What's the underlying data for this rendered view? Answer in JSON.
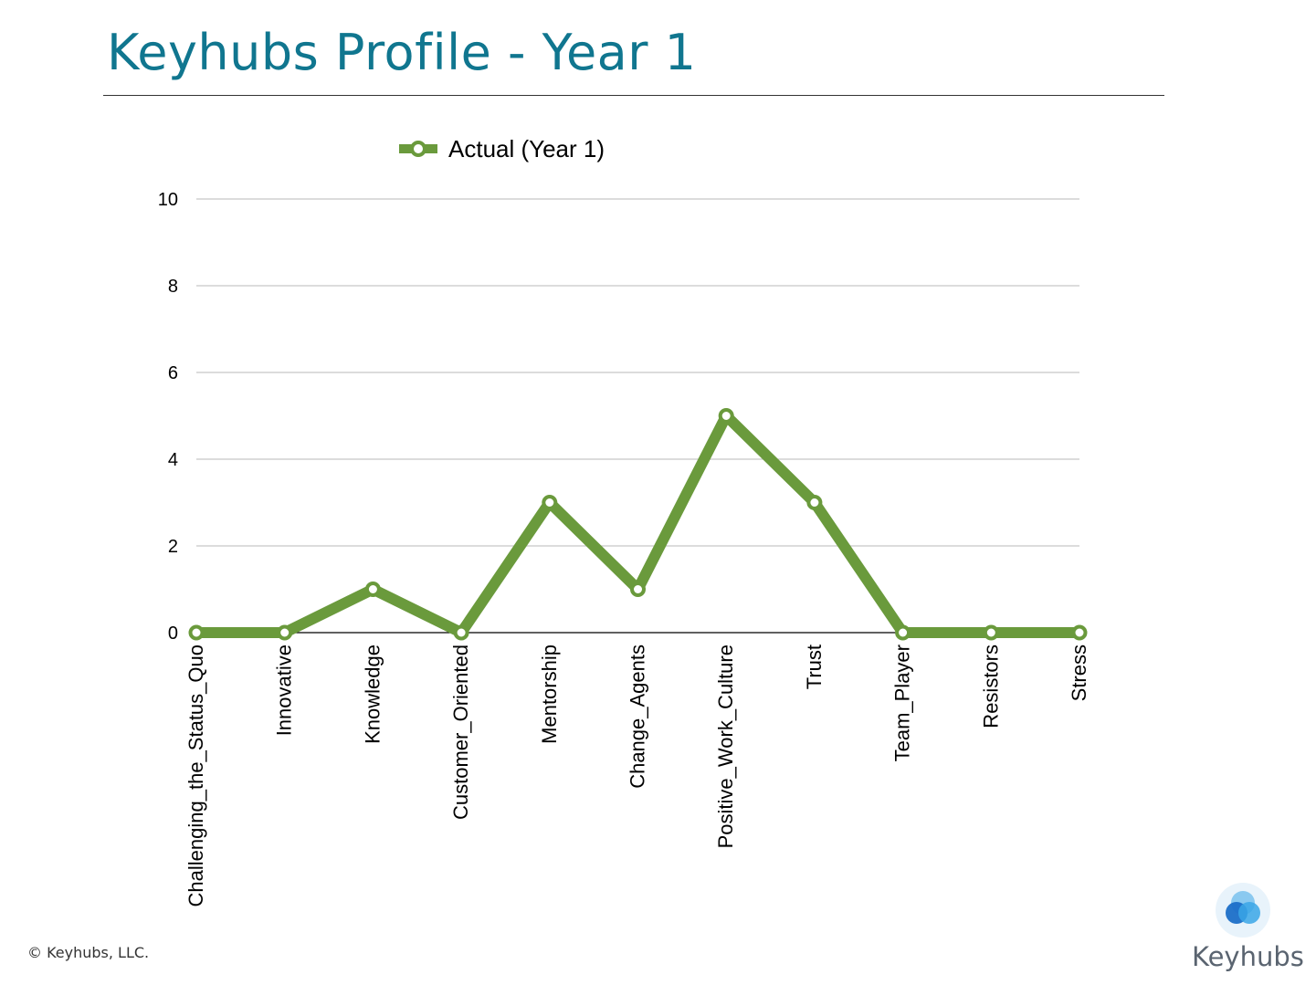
{
  "slide": {
    "title": "Keyhubs Profile - Year 1",
    "copyright": "© Keyhubs, LLC.",
    "brand_name": "Keyhubs"
  },
  "colors": {
    "title": "#10768f",
    "series": "#6a9a3c",
    "grid": "#c8c8c8",
    "logo_light": "#7fc4ee",
    "logo_mid": "#3aa6e6",
    "logo_dark": "#1c6fc8"
  },
  "chart_data": {
    "type": "line",
    "categories": [
      "Challenging_the_Status_Quo",
      "Innovative",
      "Knowledge",
      "Customer_Oriented",
      "Mentorship",
      "Change_Agents",
      "Positive_Work_Culture",
      "Trust",
      "Team_Player",
      "Resistors",
      "Stress"
    ],
    "series": [
      {
        "name": "Actual (Year 1)",
        "values": [
          0,
          0,
          1,
          0,
          3,
          1,
          5,
          3,
          0,
          0,
          0
        ]
      }
    ],
    "ylim": [
      0,
      10
    ],
    "yticks": [
      0,
      2,
      4,
      6,
      8,
      10
    ],
    "grid": true,
    "legend": "top-center",
    "marker": "hollow-circle"
  }
}
